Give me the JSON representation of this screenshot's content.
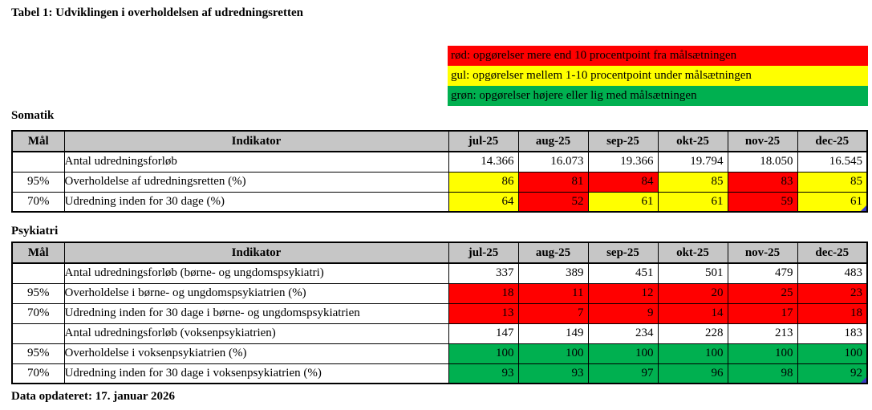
{
  "page": {
    "title": "Tabel 1: Udviklingen i overholdelsen af udredningsretten",
    "footer": "Data opdateret: 17. januar 2026"
  },
  "colors": {
    "red": "#ff0000",
    "yellow": "#ffff00",
    "green": "#00b050",
    "white": "#ffffff",
    "header_gray": "#c6c6c6"
  },
  "legend": {
    "items": [
      {
        "color": "red",
        "text": "rød: opgørelser mere end 10 procentpoint fra målsætningen"
      },
      {
        "color": "yellow",
        "text": "gul: opgørelser mellem 1-10 procentpoint under målsætningen"
      },
      {
        "color": "green",
        "text": "grøn: opgørelser højere eller lig med målsætningen"
      }
    ]
  },
  "columns": {
    "maal": "Mål",
    "indikator": "Indikator",
    "months": [
      "jul-25",
      "aug-25",
      "sep-25",
      "okt-25",
      "nov-25",
      "dec-25"
    ]
  },
  "tables": [
    {
      "section": "Somatik",
      "rows": [
        {
          "maal": "",
          "indikator": "Antal udredningsforløb",
          "values": [
            "14.366",
            "16.073",
            "19.366",
            "19.794",
            "18.050",
            "16.545"
          ],
          "cell_colors": [
            "white",
            "white",
            "white",
            "white",
            "white",
            "white"
          ]
        },
        {
          "maal": "95%",
          "indikator": "Overholdelse af udredningsretten (%)",
          "values": [
            "86",
            "81",
            "84",
            "85",
            "83",
            "85"
          ],
          "cell_colors": [
            "yellow",
            "red",
            "red",
            "yellow",
            "red",
            "yellow"
          ]
        },
        {
          "maal": "70%",
          "indikator": "Udredning inden for 30 dage (%)",
          "values": [
            "64",
            "52",
            "61",
            "61",
            "59",
            "61"
          ],
          "cell_colors": [
            "yellow",
            "red",
            "yellow",
            "yellow",
            "red",
            "yellow"
          ]
        }
      ]
    },
    {
      "section": "Psykiatri",
      "rows": [
        {
          "maal": "",
          "indikator": "Antal udredningsforløb (børne- og ungdomspsykiatri)",
          "values": [
            "337",
            "389",
            "451",
            "501",
            "479",
            "483"
          ],
          "cell_colors": [
            "white",
            "white",
            "white",
            "white",
            "white",
            "white"
          ]
        },
        {
          "maal": "95%",
          "indikator": "Overholdelse i børne- og ungdomspsykiatrien (%)",
          "values": [
            "18",
            "11",
            "12",
            "20",
            "25",
            "23"
          ],
          "cell_colors": [
            "red",
            "red",
            "red",
            "red",
            "red",
            "red"
          ]
        },
        {
          "maal": "70%",
          "indikator": "Udredning inden for 30 dage i børne- og ungdomspsykiatrien",
          "values": [
            "13",
            "7",
            "9",
            "14",
            "17",
            "18"
          ],
          "cell_colors": [
            "red",
            "red",
            "red",
            "red",
            "red",
            "red"
          ]
        },
        {
          "maal": "",
          "indikator": "Antal udredningsforløb (voksenpsykiatrien)",
          "values": [
            "147",
            "149",
            "234",
            "228",
            "213",
            "183"
          ],
          "cell_colors": [
            "white",
            "white",
            "white",
            "white",
            "white",
            "white"
          ]
        },
        {
          "maal": "95%",
          "indikator": "Overholdelse i voksenpsykiatrien (%)",
          "values": [
            "100",
            "100",
            "100",
            "100",
            "100",
            "100"
          ],
          "cell_colors": [
            "green",
            "green",
            "green",
            "green",
            "green",
            "green"
          ]
        },
        {
          "maal": "70%",
          "indikator": "Udredning inden for 30 dage i voksenpsykiatrien (%)",
          "values": [
            "93",
            "93",
            "97",
            "96",
            "98",
            "92"
          ],
          "cell_colors": [
            "green",
            "green",
            "green",
            "green",
            "green",
            "green"
          ]
        }
      ]
    }
  ]
}
